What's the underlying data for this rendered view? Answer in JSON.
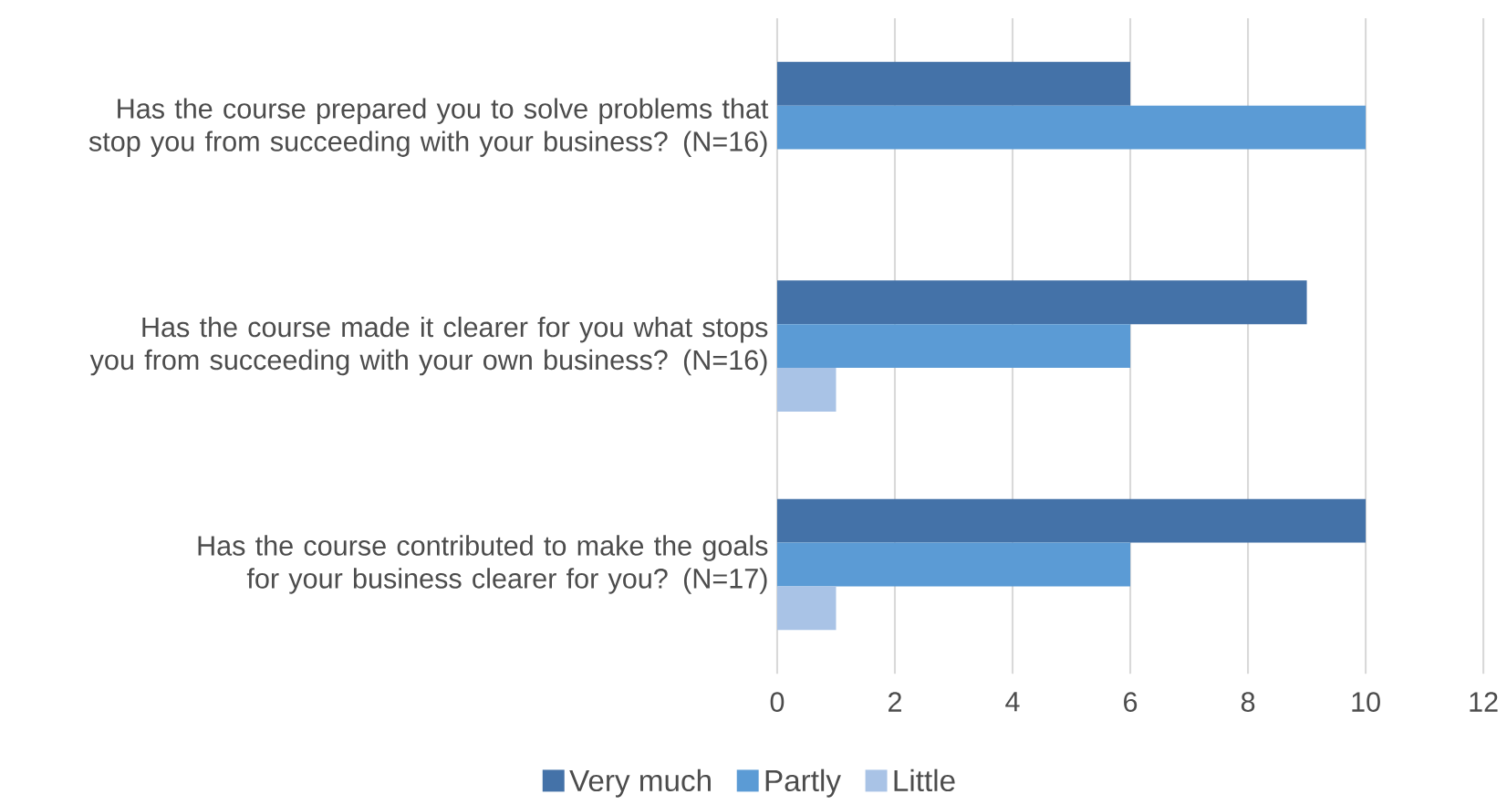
{
  "chart_data": {
    "type": "bar",
    "orientation": "horizontal",
    "categories": [
      "Has the course prepared you to solve problems that stop you from succeeding with your business? (N=16)",
      "Has the course made it clearer for you what stops you from succeeding with your own business? (N=16)",
      "Has the course contributed to make the goals for your business clearer for you? (N=17)"
    ],
    "series": [
      {
        "name": "Very much",
        "color": "#4472a8",
        "values": [
          6,
          9,
          10
        ]
      },
      {
        "name": "Partly",
        "color": "#5b9bd5",
        "values": [
          10,
          6,
          6
        ]
      },
      {
        "name": "Little",
        "color": "#a9c3e6",
        "values": [
          null,
          1,
          1
        ]
      }
    ],
    "xlim": [
      0,
      12
    ],
    "xticks": [
      0,
      2,
      4,
      6,
      8,
      10,
      12
    ],
    "grid": "x",
    "legend": "bottom"
  }
}
